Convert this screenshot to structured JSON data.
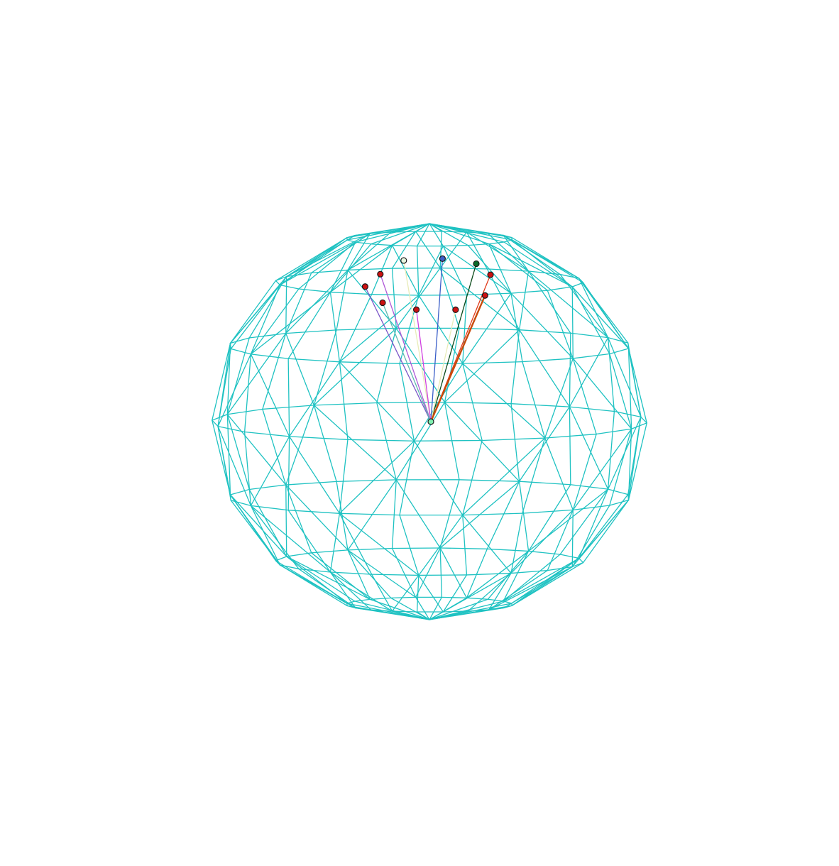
{
  "figure": {
    "mesh_color": "#1fc2c2",
    "background": "#ffffff",
    "sphere": {
      "latitude_bands": 8,
      "longitude_segments": 20,
      "view_tilt_deg": 17
    },
    "origin_point": {
      "fill": "#7ff0b0"
    },
    "vectors": [
      {
        "marker_fill": "#cc1111",
        "line_color": "#7a55c8",
        "direction": [
          -0.295,
          0.61,
          0.735
        ]
      },
      {
        "marker_fill": "#cc1111",
        "line_color": "#b05ad8",
        "direction": [
          -0.225,
          0.675,
          0.7
        ]
      },
      {
        "marker_fill": "#e8f7e0",
        "line_color": "#e8ecb8",
        "direction": [
          -0.118,
          0.75,
          0.65
        ]
      },
      {
        "marker_fill": "#3a5ec8",
        "line_color": "#3a5ec8",
        "direction": [
          0.06,
          0.76,
          0.647
        ]
      },
      {
        "marker_fill": "#0a6a2a",
        "line_color": "#0a4a1a",
        "direction": [
          0.215,
          0.735,
          0.643
        ]
      },
      {
        "marker_fill": "#cc1111",
        "line_color": "#e03a1a",
        "direction": [
          0.28,
          0.675,
          0.682
        ]
      },
      {
        "marker_fill": "#cc1111",
        "line_color": "#60b8b0",
        "direction": [
          -0.215,
          0.52,
          0.827
        ]
      },
      {
        "marker_fill": "#cc1111",
        "line_color": "#d040e0",
        "direction": [
          -0.06,
          0.48,
          0.875
        ]
      },
      {
        "marker_fill": "#cc1111",
        "line_color": "#e8ecb8",
        "direction": [
          0.12,
          0.48,
          0.869
        ]
      },
      {
        "marker_fill": "#cc1111",
        "line_color": "#c84a0a",
        "direction": [
          0.255,
          0.56,
          0.788
        ]
      }
    ]
  }
}
